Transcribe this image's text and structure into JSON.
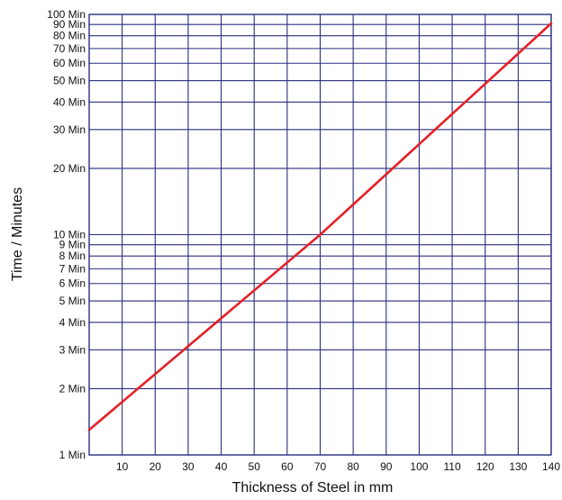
{
  "chart_data": {
    "type": "line",
    "title": "",
    "xlabel": "Thickness of Steel in mm",
    "ylabel": "Time / Minutes",
    "x_scale": "linear",
    "y_scale": "log",
    "xlim": [
      0,
      140
    ],
    "ylim": [
      1,
      100
    ],
    "x_ticks": [
      10,
      20,
      30,
      40,
      50,
      60,
      70,
      80,
      90,
      100,
      110,
      120,
      130,
      140
    ],
    "x_tick_labels": [
      "10",
      "20",
      "30",
      "40",
      "50",
      "60",
      "70",
      "80",
      "90",
      "100",
      "110",
      "120",
      "130",
      "140"
    ],
    "y_ticks": [
      1,
      2,
      3,
      4,
      5,
      6,
      7,
      8,
      9,
      10,
      20,
      30,
      40,
      50,
      60,
      70,
      80,
      90,
      100
    ],
    "y_tick_labels": [
      "1 Min",
      "2 Min",
      "3 Min",
      "4 Min",
      "5 Min",
      "6 Min",
      "7 Min",
      "8 Min",
      "9 Min",
      "10 Min",
      "20 Min",
      "30 Min",
      "40 Min",
      "50 Min",
      "60 Min",
      "70 Min",
      "80 Min",
      "90 Min",
      "100 Min"
    ],
    "grid": true,
    "series": [
      {
        "x": [
          0,
          70,
          140
        ],
        "y": [
          1.3,
          10,
          91
        ]
      }
    ],
    "colors": {
      "grid": "#2b2f7f",
      "line": "#e32127",
      "text": "#111111"
    }
  }
}
